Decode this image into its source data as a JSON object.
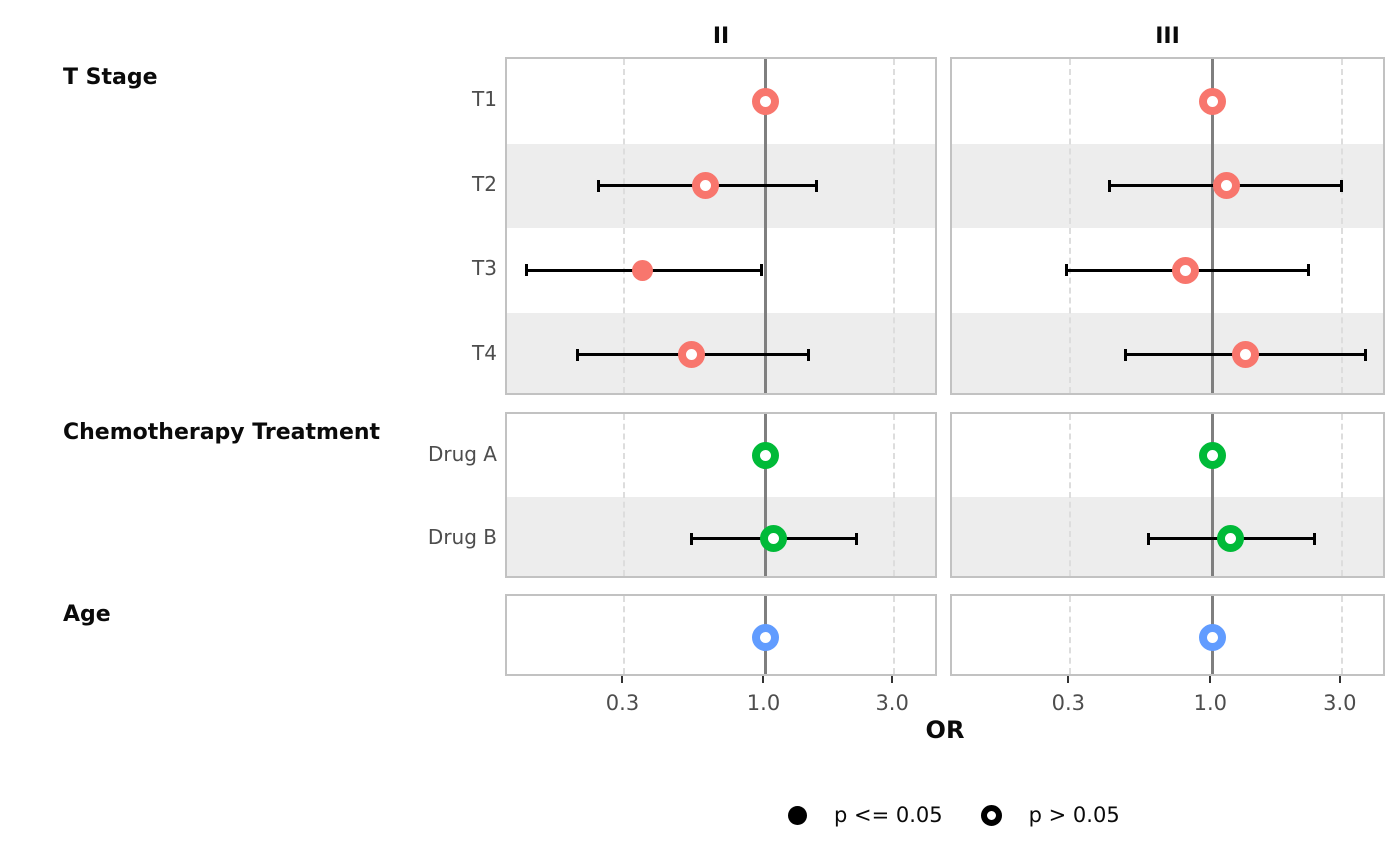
{
  "chart_data": {
    "type": "forest",
    "panel_titles": [
      "II",
      "III"
    ],
    "xlabel": "OR",
    "x_scale": "log10",
    "x_ticks": [
      "0.3",
      "1.0",
      "3.0"
    ],
    "x_tick_values": [
      0.3,
      1.0,
      3.0
    ],
    "x_range": [
      0.11,
      4.4
    ],
    "reference_or": 1.0,
    "grid": "dashed-at-0.3-and-3.0",
    "sections": [
      {
        "label": "T Stage",
        "color": "#F8766D",
        "rows": [
          {
            "label": "T1",
            "estimates": [
              {
                "or": 1.0,
                "low": null,
                "high": null,
                "significant": false
              },
              {
                "or": 1.0,
                "low": null,
                "high": null,
                "significant": false
              }
            ]
          },
          {
            "label": "T2",
            "estimates": [
              {
                "or": 0.6,
                "low": 0.24,
                "high": 1.55,
                "significant": false
              },
              {
                "or": 1.13,
                "low": 0.42,
                "high": 3.0,
                "significant": false
              }
            ]
          },
          {
            "label": "T3",
            "estimates": [
              {
                "or": 0.35,
                "low": 0.13,
                "high": 0.97,
                "significant": true
              },
              {
                "or": 0.8,
                "low": 0.29,
                "high": 2.27,
                "significant": false
              }
            ]
          },
          {
            "label": "T4",
            "estimates": [
              {
                "or": 0.53,
                "low": 0.2,
                "high": 1.44,
                "significant": false
              },
              {
                "or": 1.33,
                "low": 0.48,
                "high": 3.66,
                "significant": false
              }
            ]
          }
        ]
      },
      {
        "label": "Chemotherapy Treatment",
        "color": "#00BA38",
        "rows": [
          {
            "label": "Drug A",
            "estimates": [
              {
                "or": 1.0,
                "low": null,
                "high": null,
                "significant": false
              },
              {
                "or": 1.0,
                "low": null,
                "high": null,
                "significant": false
              }
            ]
          },
          {
            "label": "Drug B",
            "estimates": [
              {
                "or": 1.07,
                "low": 0.53,
                "high": 2.17,
                "significant": false
              },
              {
                "or": 1.17,
                "low": 0.58,
                "high": 2.37,
                "significant": false
              }
            ]
          }
        ]
      },
      {
        "label": "Age",
        "color": "#619CFF",
        "rows": [
          {
            "label": "",
            "estimates": [
              {
                "or": 1.0,
                "low": null,
                "high": null,
                "significant": false
              },
              {
                "or": 1.0,
                "low": null,
                "high": null,
                "significant": false
              }
            ]
          }
        ]
      }
    ],
    "legend": [
      {
        "label": "p <= 0.05",
        "marker": "filled"
      },
      {
        "label": "p > 0.05",
        "marker": "open"
      }
    ],
    "colors": {
      "reference_line": "#7f7f7f",
      "gridline": "#dddddd",
      "stripe": "#ededed",
      "panel_border": "#c2c2c2",
      "error_bar": "#000000",
      "axis_tick": "#333333",
      "label_gray": "#4d4d4d"
    }
  }
}
